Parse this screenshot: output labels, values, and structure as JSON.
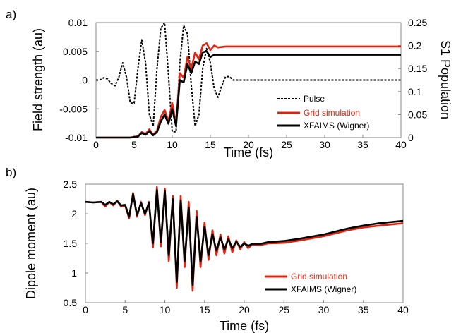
{
  "figure": {
    "panel_a_label": "a)",
    "panel_b_label": "b)"
  },
  "chart_data": [
    {
      "type": "line",
      "panel": "a)",
      "xlabel": "Time (fs)",
      "ylabel": "Field strength (au)",
      "y2label": "S1 Population",
      "xlim": [
        0,
        40
      ],
      "ylim": [
        -0.01,
        0.01
      ],
      "y2lim": [
        0,
        0.25
      ],
      "xticks": [
        "0",
        "5",
        "10",
        "15",
        "20",
        "25",
        "30",
        "35",
        "40"
      ],
      "yticks": [
        "0.01",
        "0.005",
        "0",
        "-0.005",
        "-0.01"
      ],
      "y2ticks": [
        "0.25",
        "0.2",
        "0.15",
        "0.1",
        "0.05",
        "0"
      ],
      "grid": false,
      "legend_position": "bottom-right",
      "series": [
        {
          "name": "Pulse",
          "axis": "left",
          "color": "#000000",
          "style": "dashed",
          "x": [
            0,
            0.5,
            1,
            1.5,
            2,
            2.5,
            3,
            3.5,
            4,
            4.5,
            5,
            5.5,
            6,
            6.5,
            7,
            7.5,
            8,
            8.5,
            9,
            9.5,
            10,
            10.5,
            11,
            11.5,
            12,
            12.5,
            13,
            13.5,
            14,
            14.5,
            15,
            15.5,
            16,
            16.5,
            17,
            17.5,
            18,
            19,
            20,
            22,
            25,
            30,
            35,
            40
          ],
          "values": [
            0,
            0,
            0.0004,
            0.0002,
            -0.0006,
            -0.001,
            0.0005,
            0.003,
            0.0005,
            -0.004,
            -0.004,
            0.002,
            0.007,
            0.003,
            -0.006,
            -0.008,
            0.002,
            0.009,
            0.01,
            0.001,
            -0.009,
            -0.009,
            0.003,
            0.0095,
            0.008,
            -0.001,
            -0.008,
            -0.006,
            0.002,
            0.0055,
            0.003,
            -0.0015,
            -0.003,
            -0.001,
            0.0006,
            0.0006,
            0,
            0,
            0,
            0,
            0,
            0,
            0,
            0
          ]
        },
        {
          "name": "Grid simulation",
          "axis": "right",
          "color": "#e02410",
          "style": "solid",
          "x": [
            0,
            4.5,
            5.5,
            6,
            6.5,
            7,
            7.5,
            8,
            8.5,
            9,
            9.5,
            10,
            10.5,
            11,
            11.5,
            12,
            12.5,
            13,
            13.5,
            14,
            14.5,
            15,
            15.5,
            16,
            17,
            20,
            25,
            30,
            35,
            40
          ],
          "values": [
            0,
            0,
            0.003,
            0.012,
            0.008,
            0.018,
            0.006,
            0.015,
            0.045,
            0.06,
            0.035,
            0.075,
            0.03,
            0.14,
            0.13,
            0.175,
            0.15,
            0.185,
            0.17,
            0.2,
            0.205,
            0.19,
            0.2,
            0.196,
            0.198,
            0.198,
            0.198,
            0.198,
            0.198,
            0.198
          ]
        },
        {
          "name": "XFAIMS (Wigner)",
          "axis": "right",
          "color": "#000000",
          "style": "solid",
          "x": [
            0,
            4.5,
            5.5,
            6,
            6.5,
            7,
            7.5,
            8,
            8.5,
            9,
            9.5,
            10,
            10.5,
            11,
            11.5,
            12,
            12.5,
            13,
            13.5,
            14,
            14.5,
            15,
            15.5,
            16,
            17,
            20,
            25,
            30,
            35,
            40
          ],
          "values": [
            0,
            0,
            0.002,
            0.01,
            0.006,
            0.014,
            0.005,
            0.012,
            0.035,
            0.05,
            0.03,
            0.062,
            0.025,
            0.125,
            0.12,
            0.16,
            0.14,
            0.165,
            0.16,
            0.185,
            0.188,
            0.175,
            0.18,
            0.18,
            0.18,
            0.18,
            0.18,
            0.18,
            0.18,
            0.18
          ]
        }
      ]
    },
    {
      "type": "line",
      "panel": "b)",
      "xlabel": "Time (fs)",
      "ylabel": "Dipole moment (au)",
      "xlim": [
        0,
        40
      ],
      "ylim": [
        0.5,
        2.5
      ],
      "xticks": [
        "0",
        "5",
        "10",
        "15",
        "20",
        "25",
        "30",
        "35",
        "40"
      ],
      "yticks": [
        "2.5",
        "2",
        "1.5",
        "1",
        "0.5"
      ],
      "grid": false,
      "legend_position": "bottom-right",
      "series": [
        {
          "name": "Grid simulation",
          "color": "#e02410",
          "x": [
            0,
            1,
            2,
            2.5,
            3,
            3.5,
            4,
            4.5,
            5,
            5.5,
            6,
            6.5,
            7,
            7.5,
            8,
            8.5,
            9,
            9.5,
            10,
            10.5,
            11,
            11.5,
            12,
            12.5,
            13,
            13.5,
            14,
            14.5,
            15,
            15.5,
            16,
            16.5,
            17,
            17.5,
            18,
            18.5,
            19,
            19.5,
            20,
            20.5,
            21,
            22,
            23,
            25,
            27,
            30,
            33,
            35,
            37,
            40
          ],
          "values": [
            2.2,
            2.19,
            2.2,
            2.12,
            2.2,
            2.14,
            2.22,
            2.12,
            2.14,
            1.92,
            2.35,
            1.95,
            2.2,
            1.98,
            2.2,
            1.43,
            2.45,
            1.45,
            2.42,
            1.2,
            2.3,
            0.75,
            2.3,
            1.1,
            2.2,
            0.7,
            2.05,
            1.1,
            1.85,
            1.22,
            1.72,
            1.3,
            1.65,
            1.33,
            1.62,
            1.35,
            1.55,
            1.4,
            1.52,
            1.42,
            1.48,
            1.47,
            1.5,
            1.51,
            1.55,
            1.62,
            1.72,
            1.77,
            1.8,
            1.84
          ]
        },
        {
          "name": "XFAIMS (Wigner)",
          "color": "#000000",
          "x": [
            0,
            1,
            2,
            2.5,
            3,
            3.5,
            4,
            4.5,
            5,
            5.5,
            6,
            6.5,
            7,
            7.5,
            8,
            8.5,
            9,
            9.5,
            10,
            10.5,
            11,
            11.5,
            12,
            12.5,
            13,
            13.5,
            14,
            14.5,
            15,
            15.5,
            16,
            16.5,
            17,
            17.5,
            18,
            18.5,
            19,
            19.5,
            20,
            20.5,
            21,
            22,
            23,
            25,
            27,
            30,
            33,
            35,
            37,
            40
          ],
          "values": [
            2.2,
            2.19,
            2.2,
            2.15,
            2.2,
            2.16,
            2.21,
            2.14,
            2.15,
            1.95,
            2.33,
            1.98,
            2.18,
            2.0,
            2.18,
            1.5,
            2.4,
            1.52,
            2.38,
            1.3,
            2.25,
            0.85,
            2.22,
            1.2,
            2.1,
            0.8,
            1.95,
            1.2,
            1.78,
            1.3,
            1.65,
            1.38,
            1.6,
            1.4,
            1.57,
            1.42,
            1.53,
            1.44,
            1.5,
            1.46,
            1.49,
            1.49,
            1.52,
            1.54,
            1.58,
            1.65,
            1.75,
            1.8,
            1.84,
            1.88
          ]
        }
      ]
    }
  ]
}
